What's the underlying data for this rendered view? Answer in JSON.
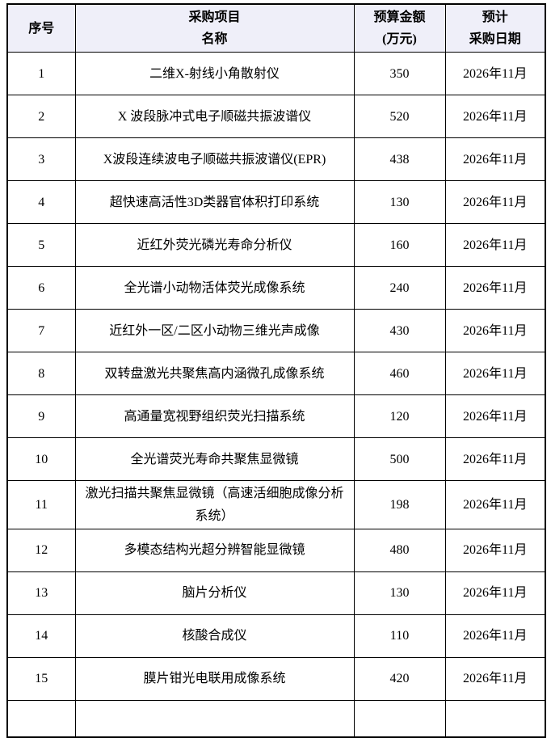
{
  "page": {
    "background": "#ffffff",
    "text_color": "#000000"
  },
  "table": {
    "style": {
      "header_bg": "#EFEFF9",
      "border_color": "#000000"
    },
    "header": {
      "col_no": "序号",
      "col_name_line1": "采购项目",
      "col_name_line2": "名称",
      "col_budget_line1": "预算金额",
      "col_budget_line2": "(万元)",
      "col_date_line1": "预计",
      "col_date_line2": "采购日期"
    },
    "rows": [
      {
        "no": "1",
        "name": "二维X-射线小角散射仪",
        "budget": "350",
        "date": "2026年11月"
      },
      {
        "no": "2",
        "name": "X 波段脉冲式电子顺磁共振波谱仪",
        "budget": "520",
        "date": "2026年11月"
      },
      {
        "no": "3",
        "name": "X波段连续波电子顺磁共振波谱仪(EPR)",
        "budget": "438",
        "date": "2026年11月"
      },
      {
        "no": "4",
        "name": "超快速高活性3D类器官体积打印系统",
        "budget": "130",
        "date": "2026年11月"
      },
      {
        "no": "5",
        "name": "近红外荧光磷光寿命分析仪",
        "budget": "160",
        "date": "2026年11月"
      },
      {
        "no": "6",
        "name": "全光谱小动物活体荧光成像系统",
        "budget": "240",
        "date": "2026年11月"
      },
      {
        "no": "7",
        "name": "近红外一区/二区小动物三维光声成像",
        "budget": "430",
        "date": "2026年11月"
      },
      {
        "no": "8",
        "name": "双转盘激光共聚焦高内涵微孔成像系统",
        "budget": "460",
        "date": "2026年11月"
      },
      {
        "no": "9",
        "name": "高通量宽视野组织荧光扫描系统",
        "budget": "120",
        "date": "2026年11月"
      },
      {
        "no": "10",
        "name": "全光谱荧光寿命共聚焦显微镜",
        "budget": "500",
        "date": "2026年11月"
      },
      {
        "no": "11",
        "name": "激光扫描共聚焦显微镜（高速活细胞成像分析系统）",
        "budget": "198",
        "date": "2026年11月"
      },
      {
        "no": "12",
        "name": "多模态结构光超分辨智能显微镜",
        "budget": "480",
        "date": "2026年11月"
      },
      {
        "no": "13",
        "name": "脑片分析仪",
        "budget": "130",
        "date": "2026年11月"
      },
      {
        "no": "14",
        "name": "核酸合成仪",
        "budget": "110",
        "date": "2026年11月"
      },
      {
        "no": "15",
        "name": "膜片钳光电联用成像系统",
        "budget": "420",
        "date": "2026年11月"
      }
    ]
  }
}
